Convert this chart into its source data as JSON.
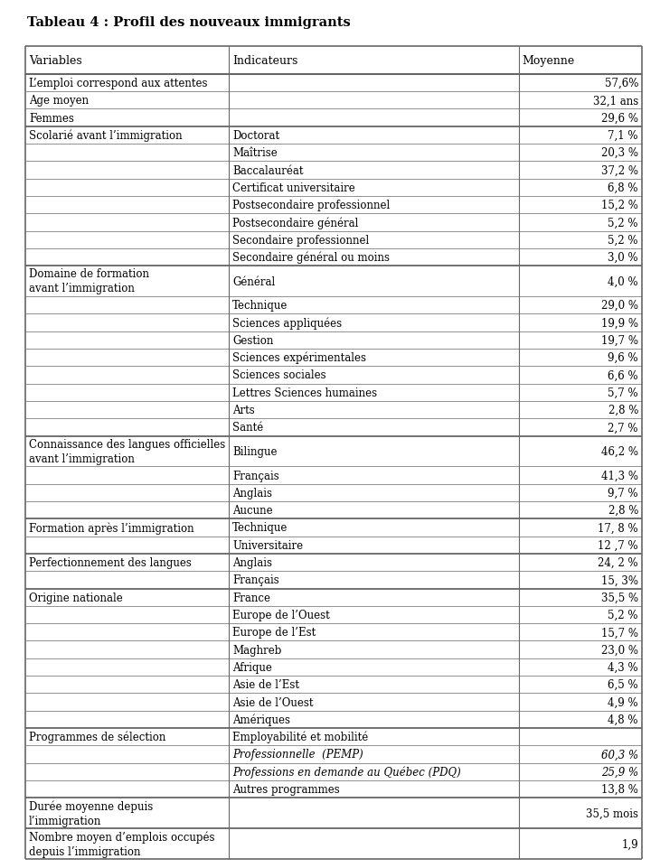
{
  "title": "Tableau 4 : Profil des nouveaux immigrants",
  "col_headers": [
    "Variables",
    "Indicateurs",
    "Moyenne"
  ],
  "rows": [
    {
      "variable": "L’emploi correspond aux attentes",
      "indicateur": "",
      "moyenne": "57,6%",
      "var_lines": 1,
      "thick_top": true
    },
    {
      "variable": "Age moyen",
      "indicateur": "",
      "moyenne": "32,1 ans",
      "var_lines": 1,
      "thick_top": false
    },
    {
      "variable": "Femmes",
      "indicateur": "",
      "moyenne": "29,6 %",
      "var_lines": 1,
      "thick_top": false
    },
    {
      "variable": "Scolarié avant l’immigration",
      "indicateur": "Doctorat",
      "moyenne": "7,1 %",
      "var_lines": 1,
      "thick_top": true
    },
    {
      "variable": "",
      "indicateur": "Maîtrise",
      "moyenne": "20,3 %",
      "var_lines": 0,
      "thick_top": false
    },
    {
      "variable": "",
      "indicateur": "Baccalauréat",
      "moyenne": "37,2 %",
      "var_lines": 0,
      "thick_top": false
    },
    {
      "variable": "",
      "indicateur": "Certificat universitaire",
      "moyenne": "6,8 %",
      "var_lines": 0,
      "thick_top": false
    },
    {
      "variable": "",
      "indicateur": "Postsecondaire professionnel",
      "moyenne": "15,2 %",
      "var_lines": 0,
      "thick_top": false
    },
    {
      "variable": "",
      "indicateur": "Postsecondaire général",
      "moyenne": "5,2 %",
      "var_lines": 0,
      "thick_top": false
    },
    {
      "variable": "",
      "indicateur": "Secondaire professionnel",
      "moyenne": "5,2 %",
      "var_lines": 0,
      "thick_top": false
    },
    {
      "variable": "",
      "indicateur": "Secondaire général ou moins",
      "moyenne": "3,0 %",
      "var_lines": 0,
      "thick_top": false
    },
    {
      "variable": "Domaine de formation\navant l’immigration",
      "indicateur": "Général",
      "moyenne": "4,0 %",
      "var_lines": 2,
      "thick_top": true
    },
    {
      "variable": "",
      "indicateur": "Technique",
      "moyenne": "29,0 %",
      "var_lines": 0,
      "thick_top": false
    },
    {
      "variable": "",
      "indicateur": "Sciences appliquées",
      "moyenne": "19,9 %",
      "var_lines": 0,
      "thick_top": false
    },
    {
      "variable": "",
      "indicateur": "Gestion",
      "moyenne": "19,7 %",
      "var_lines": 0,
      "thick_top": false
    },
    {
      "variable": "",
      "indicateur": "Sciences expérimentales",
      "moyenne": "9,6 %",
      "var_lines": 0,
      "thick_top": false
    },
    {
      "variable": "",
      "indicateur": "Sciences sociales",
      "moyenne": "6,6 %",
      "var_lines": 0,
      "thick_top": false
    },
    {
      "variable": "",
      "indicateur": "Lettres Sciences humaines",
      "moyenne": "5,7 %",
      "var_lines": 0,
      "thick_top": false
    },
    {
      "variable": "",
      "indicateur": "Arts",
      "moyenne": "2,8 %",
      "var_lines": 0,
      "thick_top": false
    },
    {
      "variable": "",
      "indicateur": "Santé",
      "moyenne": "2,7 %",
      "var_lines": 0,
      "thick_top": false
    },
    {
      "variable": "Connaissance des langues officielles\navant l’immigration",
      "indicateur": "Bilingue",
      "moyenne": "46,2 %",
      "var_lines": 2,
      "thick_top": true
    },
    {
      "variable": "",
      "indicateur": "Français",
      "moyenne": "41,3 %",
      "var_lines": 0,
      "thick_top": false
    },
    {
      "variable": "",
      "indicateur": "Anglais",
      "moyenne": "9,7 %",
      "var_lines": 0,
      "thick_top": false
    },
    {
      "variable": "",
      "indicateur": "Aucune",
      "moyenne": "2,8 %",
      "var_lines": 0,
      "thick_top": false
    },
    {
      "variable": "Formation après l’immigration",
      "indicateur": "Technique",
      "moyenne": "17, 8 %",
      "var_lines": 1,
      "thick_top": true
    },
    {
      "variable": "",
      "indicateur": "Universitaire",
      "moyenne": "12 ,7 %",
      "var_lines": 0,
      "thick_top": false
    },
    {
      "variable": "Perfectionnement des langues",
      "indicateur": "Anglais",
      "moyenne": "24, 2 %",
      "var_lines": 1,
      "thick_top": true
    },
    {
      "variable": "",
      "indicateur": "Français",
      "moyenne": "15, 3%",
      "var_lines": 0,
      "thick_top": false
    },
    {
      "variable": "Origine nationale",
      "indicateur": "France",
      "moyenne": "35,5 %",
      "var_lines": 1,
      "thick_top": true
    },
    {
      "variable": "",
      "indicateur": "Europe de l’Ouest",
      "moyenne": "5,2 %",
      "var_lines": 0,
      "thick_top": false
    },
    {
      "variable": "",
      "indicateur": "Europe de l’Est",
      "moyenne": "15,7 %",
      "var_lines": 0,
      "thick_top": false
    },
    {
      "variable": "",
      "indicateur": "Maghreb",
      "moyenne": "23,0 %",
      "var_lines": 0,
      "thick_top": false
    },
    {
      "variable": "",
      "indicateur": "Afrique",
      "moyenne": "4,3 %",
      "var_lines": 0,
      "thick_top": false
    },
    {
      "variable": "",
      "indicateur": "Asie de l’Est",
      "moyenne": "6,5 %",
      "var_lines": 0,
      "thick_top": false
    },
    {
      "variable": "",
      "indicateur": "Asie de l’Ouest",
      "moyenne": "4,9 %",
      "var_lines": 0,
      "thick_top": false
    },
    {
      "variable": "",
      "indicateur": "Amériques",
      "moyenne": "4,8 %",
      "var_lines": 0,
      "thick_top": false
    },
    {
      "variable": "Programmes de sélection",
      "indicateur": "Employabilité et mobilité",
      "moyenne": "",
      "var_lines": 1,
      "thick_top": true
    },
    {
      "variable": "",
      "indicateur": "Professionnelle  (PEMP)",
      "moyenne": "60,3 %",
      "var_lines": 0,
      "thick_top": false,
      "italic": true
    },
    {
      "variable": "",
      "indicateur": "Professions en demande au Québec (PDQ)",
      "moyenne": "25,9 %",
      "var_lines": 0,
      "thick_top": false,
      "italic": true
    },
    {
      "variable": "",
      "indicateur": "Autres programmes",
      "moyenne": "13,8 %",
      "var_lines": 0,
      "thick_top": false
    },
    {
      "variable": "Durée moyenne depuis\nl’immigration",
      "indicateur": "",
      "moyenne": "35,5 mois",
      "var_lines": 2,
      "thick_top": true
    },
    {
      "variable": "Nombre moyen d’emplois occupés\ndepuis l’immigration",
      "indicateur": "",
      "moyenne": "1,9",
      "var_lines": 2,
      "thick_top": true
    }
  ],
  "bg_color": "#ffffff",
  "text_color": "#000000",
  "border_color": "#666666",
  "title_fontsize": 10.5,
  "header_fontsize": 9,
  "cell_fontsize": 8.5
}
